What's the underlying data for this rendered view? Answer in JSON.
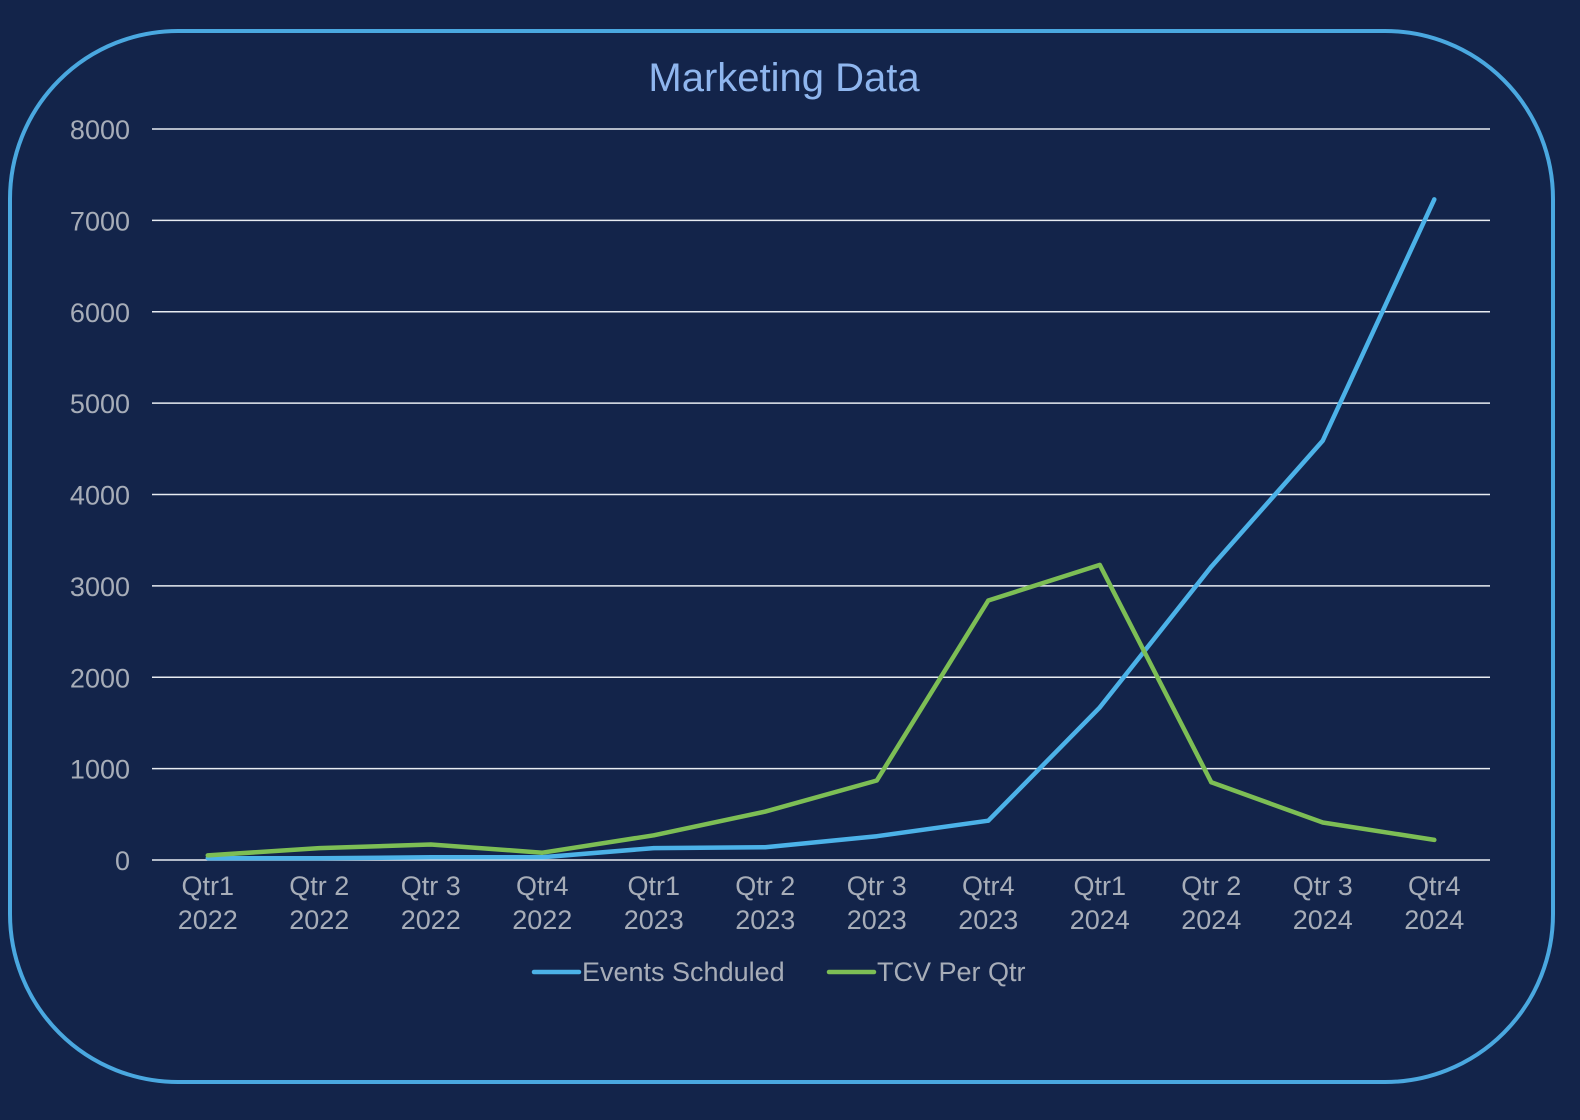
{
  "chart_data": {
    "type": "line",
    "title": "Marketing Data",
    "categories": [
      [
        "Qtr1",
        "2022"
      ],
      [
        "Qtr 2",
        "2022"
      ],
      [
        "Qtr 3",
        "2022"
      ],
      [
        "Qtr4",
        "2022"
      ],
      [
        "Qtr1",
        "2023"
      ],
      [
        "Qtr 2",
        "2023"
      ],
      [
        "Qtr 3",
        "2023"
      ],
      [
        "Qtr4",
        "2023"
      ],
      [
        "Qtr1",
        "2024"
      ],
      [
        "Qtr 2",
        "2024"
      ],
      [
        "Qtr 3",
        "2024"
      ],
      [
        "Qtr4",
        "2024"
      ]
    ],
    "y_ticks": [
      "0",
      "1000",
      "2000",
      "3000",
      "4000",
      "5000",
      "6000",
      "7000",
      "8000"
    ],
    "ylim": [
      0,
      8000
    ],
    "grid": true,
    "legend_position": "bottom",
    "series": [
      {
        "name": "Events Schduled",
        "color": "#4cb2e8",
        "values": [
          20,
          20,
          30,
          30,
          130,
          140,
          260,
          430,
          1670,
          3210,
          4590,
          7230
        ]
      },
      {
        "name": "TCV Per Qtr",
        "color": "#7dbe55",
        "values": [
          50,
          130,
          170,
          80,
          270,
          530,
          870,
          2840,
          3230,
          850,
          410,
          220
        ]
      }
    ]
  }
}
